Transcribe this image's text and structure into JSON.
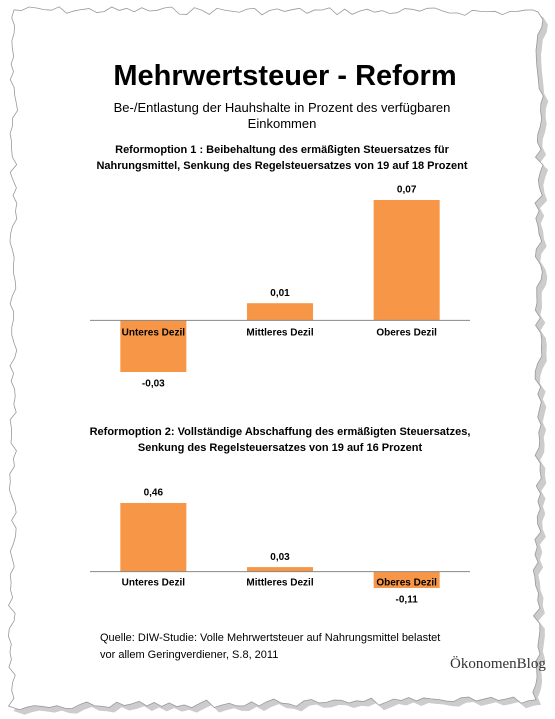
{
  "title": "Mehrwertsteuer - Reform",
  "subtitle": "Be-/Entlastung der Hauhshalte in Prozent des verfügbaren Einkommen",
  "chart_data": [
    {
      "type": "bar",
      "title": "Reformoption 1 : Beibehaltung des ermäßigten Steuersatzes für Nahrungsmittel, Senkung des Regelsteuersatzes von 19 auf 18 Prozent",
      "categories": [
        "Unteres Dezil",
        "Mittleres Dezil",
        "Oberes Dezil"
      ],
      "values": [
        -0.03,
        0.01,
        0.07
      ],
      "value_labels": [
        "-0,03",
        "0,01",
        "0,07"
      ],
      "color": "#f79646"
    },
    {
      "type": "bar",
      "title": "Reformoption 2: Vollständige Abschaffung des ermäßigten Steuersatzes, Senkung des Regelsteuersatzes von 19 auf 16 Prozent",
      "categories": [
        "Unteres Dezil",
        "Mittleres Dezil",
        "Oberes Dezil"
      ],
      "values": [
        0.46,
        0.03,
        -0.11
      ],
      "value_labels": [
        "0,46",
        "0,03",
        "-0,11"
      ],
      "color": "#f79646"
    }
  ],
  "source": "Quelle:  DIW-Studie: Volle Mehrwertsteuer auf Nahrungsmittel belastet vor allem Geringverdiener, S.8, 2011",
  "logo": "ÖkonomenBlog"
}
